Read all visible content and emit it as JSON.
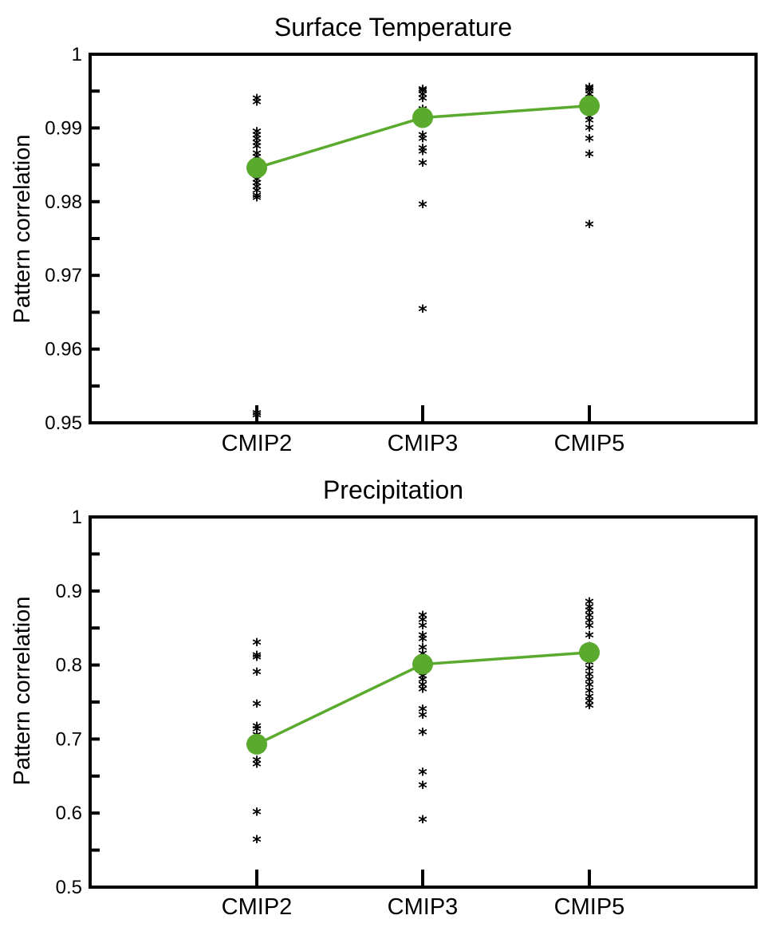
{
  "chart_data": [
    {
      "type": "scatter",
      "title": "Surface Temperature",
      "ylabel": "Pattern correlation",
      "xlabel": "",
      "categories": [
        "CMIP2",
        "CMIP3",
        "CMIP5"
      ],
      "ylim": [
        0.95,
        1
      ],
      "yticks": [
        "0.95",
        "0.96",
        "0.97",
        "0.98",
        "0.99",
        "1"
      ],
      "legend": "none",
      "grid": false,
      "line_color": "#5aaa2d",
      "marker_color": "#000000",
      "mean_values": [
        0.9846,
        0.9914,
        0.993
      ],
      "model_values": [
        [
          0.9515,
          0.9518,
          0.981,
          0.9813,
          0.982,
          0.9825,
          0.983,
          0.9835,
          0.9845,
          0.9855,
          0.986,
          0.9865,
          0.987,
          0.988,
          0.9885,
          0.989,
          0.9895,
          0.99,
          0.994,
          0.9945
        ],
        [
          0.9659,
          0.9801,
          0.9857,
          0.9873,
          0.9877,
          0.989,
          0.9895,
          0.991,
          0.992,
          0.993,
          0.9945,
          0.995,
          0.9955,
          0.9957
        ],
        [
          0.9774,
          0.9869,
          0.989,
          0.9905,
          0.9915,
          0.992,
          0.993,
          0.994,
          0.9945,
          0.995,
          0.9955,
          0.9958,
          0.996
        ]
      ]
    },
    {
      "type": "scatter",
      "title": "Precipitation",
      "ylabel": "Pattern correlation",
      "xlabel": "",
      "categories": [
        "CMIP2",
        "CMIP3",
        "CMIP5"
      ],
      "ylim": [
        0.5,
        1
      ],
      "yticks": [
        "0.5",
        "0.6",
        "0.7",
        "0.8",
        "0.9",
        "1"
      ],
      "legend": "none",
      "grid": false,
      "line_color": "#5aaa2d",
      "marker_color": "#000000",
      "mean_values": [
        0.693,
        0.801,
        0.817
      ],
      "model_values": [
        [
          0.569,
          0.606,
          0.671,
          0.676,
          0.71,
          0.718,
          0.722,
          0.752,
          0.795,
          0.815,
          0.818,
          0.835
        ],
        [
          0.596,
          0.642,
          0.66,
          0.714,
          0.737,
          0.745,
          0.772,
          0.778,
          0.785,
          0.79,
          0.796,
          0.805,
          0.81,
          0.82,
          0.828,
          0.84,
          0.845,
          0.858,
          0.866,
          0.872
        ],
        [
          0.75,
          0.756,
          0.762,
          0.77,
          0.778,
          0.785,
          0.792,
          0.8,
          0.808,
          0.817,
          0.83,
          0.845,
          0.858,
          0.865,
          0.872,
          0.878,
          0.883,
          0.89
        ]
      ]
    }
  ]
}
